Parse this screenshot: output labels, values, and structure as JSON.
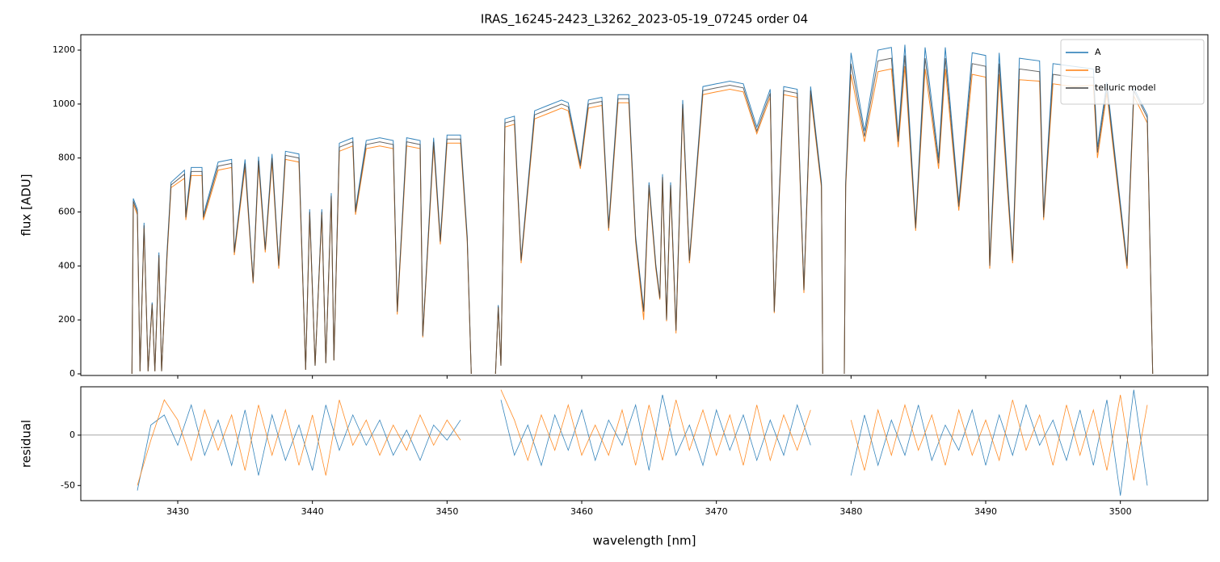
{
  "chart_data": [
    {
      "type": "line",
      "title": "IRAS_16245-2423_L3262_2023-05-19_07245  order 04",
      "ylabel": "flux [ADU]",
      "x": [
        3426.6,
        3426.7,
        3427.0,
        3427.2,
        3427.5,
        3427.8,
        3428.1,
        3428.3,
        3428.6,
        3428.8,
        3429.2,
        3429.5,
        3430.5,
        3430.6,
        3431.0,
        3431.8,
        3431.9,
        3433.0,
        3434.0,
        3434.2,
        3435.0,
        3435.6,
        3436.0,
        3436.5,
        3437.0,
        3437.5,
        3438.0,
        3439.0,
        3439.5,
        3439.8,
        3440.2,
        3440.7,
        3441.0,
        3441.4,
        3441.6,
        3442.0,
        3443.0,
        3443.2,
        3444.0,
        3445.0,
        3446.0,
        3446.3,
        3447.0,
        3448.0,
        3448.2,
        3449.0,
        3449.5,
        3450.0,
        3451.0,
        3451.5,
        3451.8,
        3452.5,
        3453.6,
        3453.8,
        3454.0,
        3454.3,
        3455.0,
        3455.5,
        3456.5,
        3457.5,
        3458.5,
        3459.0,
        3459.9,
        3460.5,
        3461.5,
        3462.0,
        3462.7,
        3463.5,
        3464.0,
        3464.6,
        3465.0,
        3465.5,
        3465.8,
        3466.0,
        3466.3,
        3466.6,
        3467.0,
        3467.5,
        3468.0,
        3469.0,
        3470.0,
        3471.0,
        3472.0,
        3473.0,
        3474.0,
        3474.3,
        3475.0,
        3476.0,
        3476.5,
        3477.0,
        3477.8,
        3477.9,
        3478.8,
        3479.5,
        3479.6,
        3480.0,
        3481.0,
        3482.0,
        3483.0,
        3483.5,
        3484.0,
        3484.8,
        3485.5,
        3486.5,
        3487.0,
        3488.0,
        3489.0,
        3490.0,
        3490.3,
        3491.0,
        3492.0,
        3492.5,
        3494.0,
        3494.3,
        3495.0,
        3496.5,
        3498.0,
        3498.3,
        3499.0,
        3500.5,
        3501.0,
        3502.0,
        3502.4
      ],
      "series": [
        {
          "name": "A",
          "color": "#1f77b4",
          "values": [
            0,
            650,
            610,
            10,
            560,
            10,
            265,
            10,
            450,
            10,
            450,
            710,
            755,
            590,
            765,
            765,
            590,
            785,
            795,
            455,
            795,
            345,
            805,
            465,
            815,
            405,
            825,
            815,
            15,
            610,
            30,
            610,
            40,
            670,
            50,
            855,
            875,
            610,
            865,
            875,
            865,
            235,
            875,
            865,
            145,
            875,
            500,
            885,
            885,
            510,
            0,
            null,
            0,
            255,
            30,
            945,
            955,
            425,
            975,
            995,
            1015,
            1005,
            780,
            1015,
            1025,
            550,
            1035,
            1035,
            510,
            235,
            710,
            405,
            285,
            740,
            205,
            710,
            165,
            1015,
            425,
            1065,
            1075,
            1085,
            1075,
            915,
            1055,
            235,
            1065,
            1055,
            315,
            1065,
            710,
            0,
            null,
            0,
            710,
            1190,
            900,
            1200,
            1210,
            880,
            1220,
            550,
            1210,
            800,
            1210,
            635,
            1190,
            1180,
            410,
            1190,
            430,
            1170,
            1160,
            590,
            1150,
            1140,
            1130,
            840,
            1080,
            410,
            1060,
            960,
            0
          ]
        },
        {
          "name": "B",
          "color": "#ff7f0e",
          "values": [
            0,
            630,
            590,
            10,
            540,
            10,
            255,
            10,
            430,
            10,
            430,
            690,
            725,
            570,
            735,
            735,
            570,
            755,
            765,
            440,
            765,
            335,
            775,
            450,
            785,
            390,
            795,
            785,
            15,
            590,
            30,
            590,
            40,
            650,
            50,
            825,
            845,
            590,
            835,
            845,
            835,
            220,
            845,
            835,
            135,
            845,
            480,
            855,
            855,
            490,
            0,
            null,
            0,
            245,
            30,
            915,
            925,
            410,
            945,
            965,
            985,
            975,
            760,
            985,
            995,
            530,
            1005,
            1005,
            490,
            200,
            690,
            390,
            275,
            720,
            195,
            690,
            150,
            985,
            410,
            1035,
            1045,
            1055,
            1045,
            890,
            1025,
            225,
            1035,
            1025,
            300,
            1035,
            690,
            0,
            null,
            0,
            690,
            1110,
            860,
            1120,
            1130,
            840,
            1140,
            530,
            1130,
            760,
            1130,
            605,
            1110,
            1100,
            390,
            1110,
            410,
            1090,
            1085,
            570,
            1075,
            1065,
            1070,
            800,
            1040,
            390,
            1030,
            930,
            0
          ]
        },
        {
          "name": "telluric model",
          "color": "#404040",
          "values": [
            0,
            640,
            600,
            10,
            550,
            10,
            260,
            10,
            440,
            10,
            440,
            700,
            740,
            580,
            750,
            750,
            580,
            770,
            780,
            450,
            780,
            340,
            790,
            460,
            800,
            400,
            810,
            800,
            15,
            600,
            30,
            600,
            40,
            660,
            50,
            840,
            860,
            600,
            850,
            860,
            850,
            230,
            860,
            850,
            140,
            860,
            490,
            870,
            870,
            500,
            0,
            null,
            0,
            250,
            30,
            930,
            940,
            420,
            960,
            980,
            1000,
            990,
            770,
            1000,
            1010,
            540,
            1020,
            1020,
            500,
            230,
            700,
            400,
            280,
            730,
            200,
            700,
            160,
            1000,
            420,
            1050,
            1060,
            1070,
            1060,
            900,
            1040,
            230,
            1050,
            1040,
            310,
            1050,
            700,
            0,
            null,
            0,
            700,
            1150,
            880,
            1160,
            1170,
            860,
            1180,
            540,
            1170,
            780,
            1170,
            620,
            1150,
            1140,
            400,
            1150,
            420,
            1130,
            1120,
            580,
            1110,
            1100,
            1100,
            820,
            1060,
            400,
            1050,
            950,
            0
          ]
        }
      ],
      "xlim": [
        3422.8,
        3506.5
      ],
      "xticks": [
        3430,
        3440,
        3450,
        3460,
        3470,
        3480,
        3490,
        3500
      ],
      "xtick_labels": false,
      "ylim": [
        -6,
        1257
      ],
      "yticks": [
        0,
        200,
        400,
        600,
        800,
        1000,
        1200
      ],
      "legend": "upper right"
    },
    {
      "type": "line",
      "xlabel": "wavelength [nm]",
      "ylabel": "residual",
      "x": [
        3427,
        3428,
        3429,
        3430,
        3431,
        3432,
        3433,
        3434,
        3435,
        3436,
        3437,
        3438,
        3439,
        3440,
        3441,
        3442,
        3443,
        3444,
        3445,
        3446,
        3447,
        3448,
        3449,
        3450,
        3451,
        3452,
        3453,
        3454,
        3455,
        3456,
        3457,
        3458,
        3459,
        3460,
        3461,
        3462,
        3463,
        3464,
        3465,
        3466,
        3467,
        3468,
        3469,
        3470,
        3471,
        3472,
        3473,
        3474,
        3475,
        3476,
        3477,
        3478,
        3479,
        3480,
        3481,
        3482,
        3483,
        3484,
        3485,
        3486,
        3487,
        3488,
        3489,
        3490,
        3491,
        3492,
        3493,
        3494,
        3495,
        3496,
        3497,
        3498,
        3499,
        3500,
        3501,
        3502
      ],
      "series": [
        {
          "name": "A",
          "color": "#1f77b4",
          "values": [
            -55,
            10,
            20,
            -10,
            30,
            -20,
            15,
            -30,
            25,
            -40,
            20,
            -25,
            10,
            -35,
            30,
            -15,
            20,
            -10,
            15,
            -20,
            5,
            -25,
            10,
            -5,
            15,
            null,
            null,
            35,
            -20,
            10,
            -30,
            20,
            -15,
            25,
            -25,
            15,
            -10,
            30,
            -35,
            40,
            -20,
            10,
            -30,
            25,
            -15,
            20,
            -25,
            15,
            -20,
            30,
            -10,
            null,
            null,
            -40,
            20,
            -30,
            15,
            -20,
            30,
            -25,
            10,
            -15,
            25,
            -30,
            20,
            -20,
            30,
            -10,
            15,
            -25,
            25,
            -30,
            35,
            -60,
            45,
            -50
          ]
        },
        {
          "name": "B",
          "color": "#ff7f0e",
          "values": [
            -50,
            -5,
            35,
            15,
            -25,
            25,
            -15,
            20,
            -35,
            30,
            -20,
            25,
            -30,
            20,
            -40,
            35,
            -10,
            15,
            -20,
            10,
            -15,
            20,
            -10,
            15,
            -5,
            null,
            null,
            45,
            15,
            -25,
            20,
            -15,
            30,
            -20,
            10,
            -20,
            25,
            -30,
            30,
            -25,
            35,
            -15,
            25,
            -20,
            20,
            -30,
            30,
            -25,
            20,
            -15,
            25,
            null,
            null,
            15,
            -35,
            25,
            -20,
            30,
            -15,
            20,
            -30,
            25,
            -20,
            15,
            -25,
            35,
            -15,
            20,
            -30,
            30,
            -20,
            25,
            -35,
            40,
            -45,
            30
          ]
        }
      ],
      "hline": 0,
      "xlim": [
        3422.8,
        3506.5
      ],
      "xticks": [
        3430,
        3440,
        3450,
        3460,
        3470,
        3480,
        3490,
        3500
      ],
      "ylim": [
        -65,
        48
      ],
      "yticks": [
        -50,
        0
      ]
    }
  ]
}
